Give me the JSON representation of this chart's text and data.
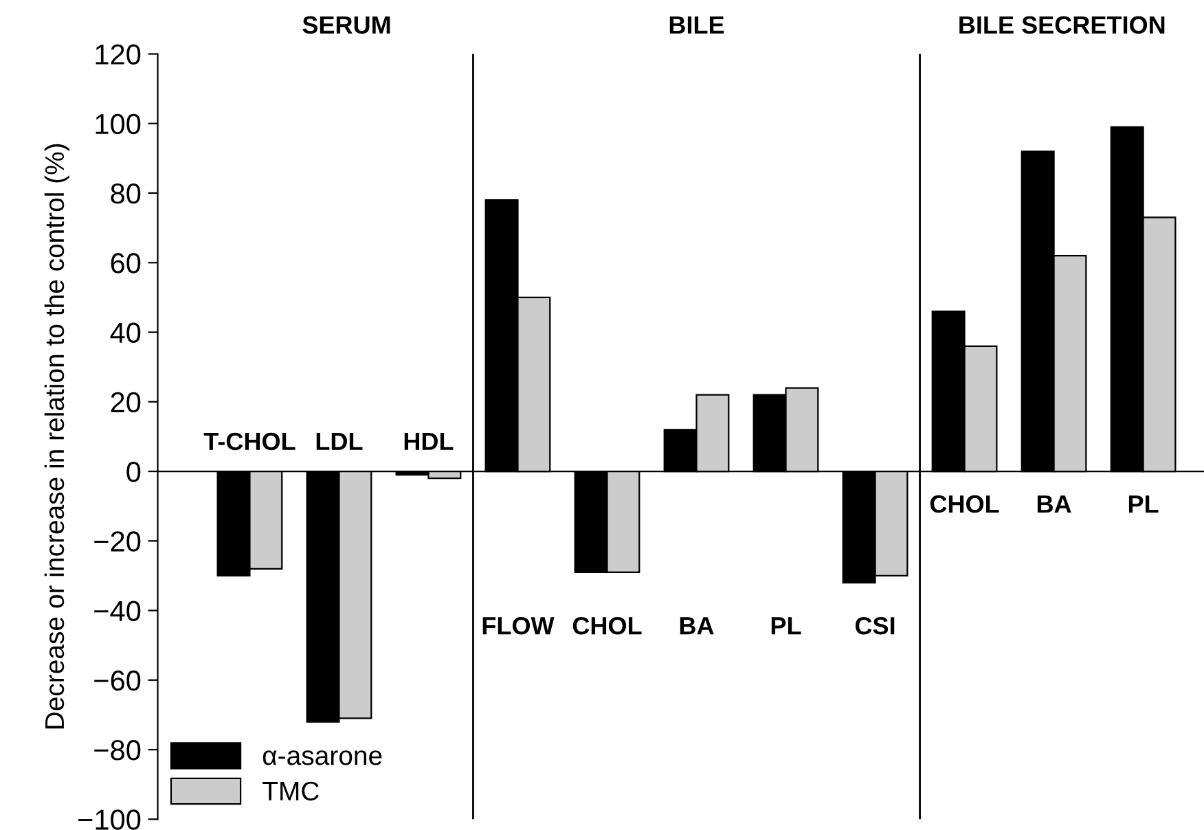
{
  "chart_data": {
    "type": "bar",
    "categories": [
      "T-CHOL",
      "LDL",
      "HDL",
      "FLOW",
      "CHOL",
      "BA",
      "PL",
      "CSI",
      "CHOL",
      "BA",
      "PL"
    ],
    "series": [
      {
        "name": "α-asarone",
        "color": "#000000",
        "values": [
          -30,
          -72,
          -1,
          78,
          -29,
          12,
          22,
          -32,
          46,
          92,
          99
        ]
      },
      {
        "name": "TMC",
        "color": "#cccccc",
        "values": [
          -28,
          -71,
          -2,
          50,
          -29,
          22,
          24,
          -30,
          36,
          62,
          73
        ]
      }
    ],
    "ylabel": "Decrease or increase in relation to the control (%)",
    "ylim": [
      -100,
      120
    ],
    "yticks": [
      {
        "value": -100,
        "label": "−100"
      },
      {
        "value": -80,
        "label": "−80"
      },
      {
        "value": -60,
        "label": "−60"
      },
      {
        "value": -40,
        "label": "−40"
      },
      {
        "value": -20,
        "label": "−20"
      },
      0,
      20,
      40,
      60,
      80,
      100,
      120
    ],
    "annotations": [
      "SERUM",
      "BILE",
      "BILE SECRETION"
    ],
    "legend": "bottom left",
    "grid": false
  }
}
